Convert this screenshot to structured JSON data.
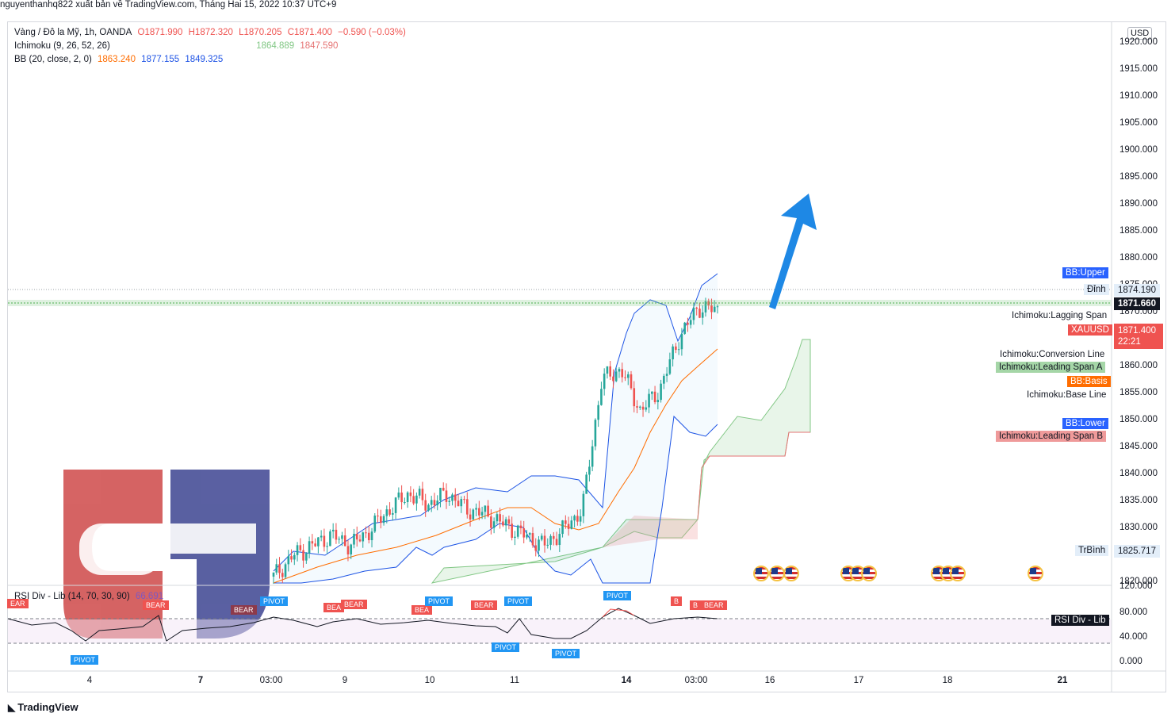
{
  "header": {
    "publisher_line": "nguyenthanhq822 xuất bản về TradingView.com, Tháng Hai 15, 2022 10:37 UTC+9"
  },
  "legend": {
    "symbol": "Vàng / Đô la Mỹ, 1h, OANDA",
    "open": "O1871.990",
    "high": "H1872.320",
    "low": "L1870.205",
    "close": "C1871.400",
    "change": "−0.590 (−0.03%)",
    "ichimoku_name": "Ichimoku (9, 26, 52, 26)",
    "ichimoku_v1": "1864.889",
    "ichimoku_v2": "1847.590",
    "bb_name": "BB (20, close, 2, 0)",
    "bb_basis": "1863.240",
    "bb_upper": "1877.155",
    "bb_lower": "1849.325"
  },
  "right_axis": {
    "currency": "USD",
    "ticks": [
      "1920.000",
      "1915.000",
      "1910.000",
      "1905.000",
      "1900.000",
      "1895.000",
      "1890.000",
      "1885.000",
      "1880.000",
      "1875.000",
      "1870.000",
      "1860.000",
      "1855.000",
      "1850.000",
      "1845.000",
      "1840.000",
      "1835.000",
      "1830.000",
      "1820.000"
    ],
    "rsi_ticks": [
      "120.000",
      "80.000",
      "40.000",
      "0.000"
    ]
  },
  "price_tags": {
    "dinh_label": "Đỉnh",
    "dinh_value": "1874.190",
    "current_line_value": "1871.660",
    "symbol_tag": "XAUUSD",
    "symbol_price": "1871.400",
    "countdown": "22:21",
    "trbinh_label": "TrBình",
    "trbinh_value": "1825.717"
  },
  "series_labels": {
    "bb_upper": "BB:Upper",
    "lagging": "Ichimoku:Lagging Span",
    "conversion": "Ichimoku:Conversion Line",
    "leading_a": "Ichimoku:Leading Span A",
    "bb_basis": "BB:Basis",
    "base": "Ichimoku:Base Line",
    "bb_lower": "BB:Lower",
    "leading_b": "Ichimoku:Leading Span B"
  },
  "rsi": {
    "legend": "RSI Div - Lib (14, 70, 30, 90)",
    "value": "66.691",
    "tag": "RSI Div - Lib",
    "bear_label": "BEAR",
    "pivot_label": "PIVOT",
    "bear_short": "B",
    "bear_partial": "EAR",
    "bear_partial2": "BEA"
  },
  "time_axis": [
    "4",
    "7",
    "03:00",
    "9",
    "10",
    "11",
    "14",
    "03:00",
    "16",
    "17",
    "18",
    "21"
  ],
  "footer": {
    "brand": "TradingView"
  },
  "colors": {
    "bull": "#26a69a",
    "bear": "#ef5350",
    "bb": "#1e53e5",
    "basis": "#ff6d00",
    "span_a": "#81c784",
    "span_b": "#e57373",
    "arrow": "#1e88e5",
    "logo_red": "#c62828",
    "logo_blue": "#1a237e"
  },
  "chart_data": {
    "type": "candlestick",
    "symbol": "XAUUSD",
    "interval": "1h",
    "price_ylim": [
      1820,
      1922
    ],
    "approx_close_path": [
      1820,
      1824,
      1826,
      1828,
      1826,
      1829,
      1833,
      1836,
      1834,
      1836,
      1833,
      1832,
      1830,
      1828,
      1826,
      1829,
      1833,
      1858,
      1860,
      1852,
      1856,
      1866,
      1872,
      1871.4
    ],
    "rsi_ylim": [
      0,
      120
    ],
    "rsi_levels": [
      70,
      30
    ]
  }
}
